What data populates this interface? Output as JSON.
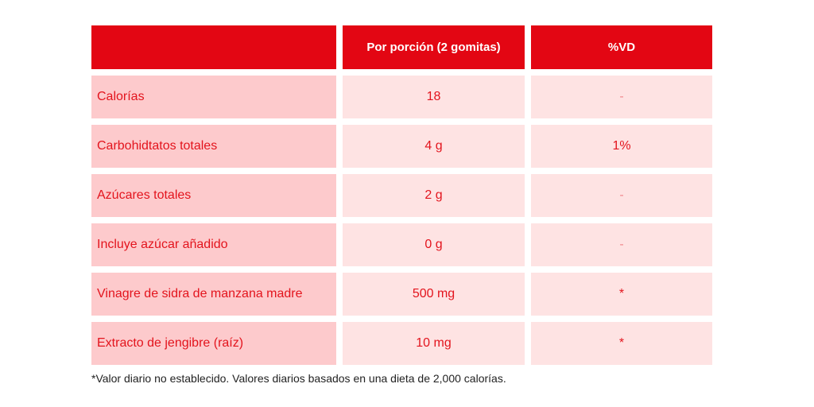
{
  "table": {
    "header": [
      "Por porción (2 gomitas)",
      "%VD"
    ],
    "rows": [
      [
        "Calorías",
        "18",
        "-"
      ],
      [
        "Carbohidtatos totales",
        "4 g",
        "1%"
      ],
      [
        "Azúcares totales",
        "2 g",
        "-"
      ],
      [
        "Incluye azúcar añadido",
        "0 g",
        "-"
      ],
      [
        "Vinagre de sidra de manzana madre",
        "500 mg",
        "*"
      ],
      [
        "Extracto de jengibre (raíz)",
        "10 mg",
        "*"
      ]
    ],
    "footnote": "*Valor diario no establecido. Valores diarios basados en una dieta de 2,000 calorías."
  }
}
